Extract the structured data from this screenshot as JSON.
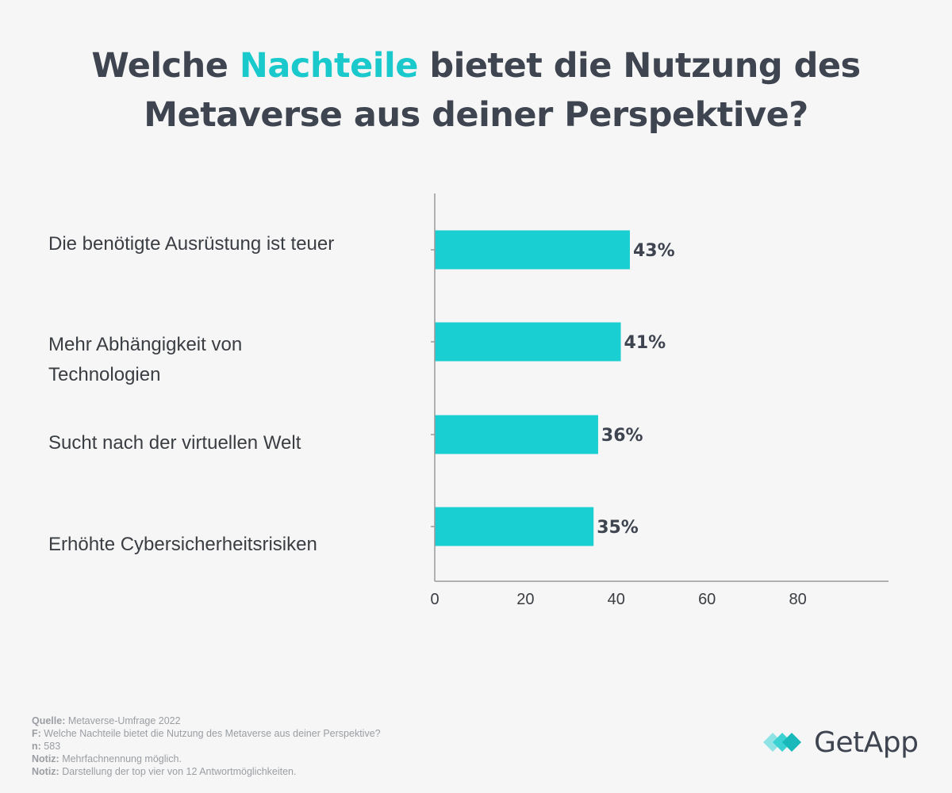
{
  "title": {
    "part1": "Welche ",
    "accent": "Nachteile",
    "part2": " bietet die Nutzung des",
    "line2": "Metaverse aus deiner Perspektive?"
  },
  "colors": {
    "bar": "#19cfd1",
    "accent": "#19c9cb",
    "text": "#3e4550",
    "axis": "#9a9a9a"
  },
  "chart_data": {
    "type": "bar",
    "orientation": "horizontal",
    "categories": [
      "Die benötigte Ausrüstung ist teuer",
      "Mehr Abhängigkeit von Technologien",
      "Sucht nach der virtuellen Welt",
      "Erhöhte Cybersicherheitsrisiken"
    ],
    "values": [
      43,
      41,
      36,
      35
    ],
    "value_labels": [
      "43%",
      "41%",
      "36%",
      "35%"
    ],
    "xlim": [
      0,
      100
    ],
    "xticks": [
      "0",
      "20",
      "40",
      "60",
      "80"
    ],
    "grid": false
  },
  "footer": [
    {
      "key": "Quelle:",
      "text": " Metaverse-Umfrage 2022"
    },
    {
      "key": "F:",
      "text": " Welche Nachteile bietet die Nutzung des Metaverse aus deiner Perspektive?"
    },
    {
      "key": "n:",
      "text": " 583"
    },
    {
      "key": "Notiz:",
      "text": " Mehrfachnennung möglich."
    },
    {
      "key": "Notiz:",
      "text": " Darstellung der top vier von 12 Antwortmöglichkeiten."
    }
  ],
  "logo": {
    "text": "GetApp",
    "icon": "getapp-chevron-icon"
  }
}
